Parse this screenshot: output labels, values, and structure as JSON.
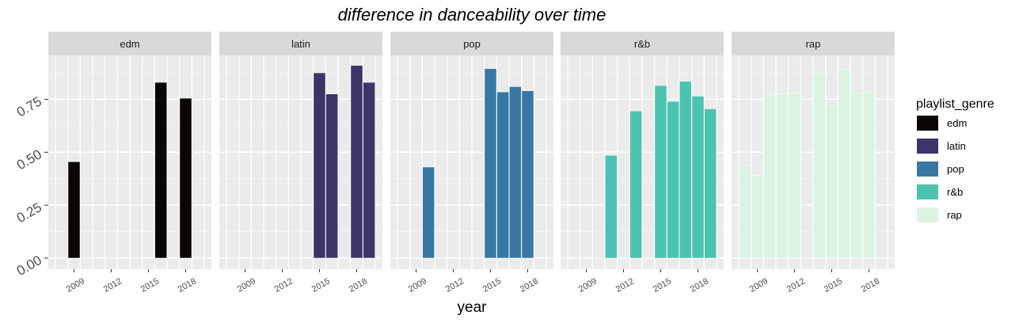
{
  "chart_data": {
    "type": "bar",
    "title": "difference in danceability over time",
    "xlabel": "year",
    "ylabel": "",
    "ylim": [
      0,
      0.92
    ],
    "y_ticks": [
      0,
      0.25,
      0.5,
      0.75
    ],
    "y_tick_labels": [
      "0.00",
      "0.25",
      "0.50",
      "0.75"
    ],
    "x_range": [
      2008,
      2019
    ],
    "x_ticks": [
      2009,
      2012,
      2015,
      2018
    ],
    "x_tick_labels": [
      "2009",
      "2012",
      "2015",
      "2018"
    ],
    "grid": true,
    "legend_position": "right",
    "legend_title": "playlist_genre",
    "facets": [
      {
        "label": "edm",
        "color": "#0a0604",
        "bars": [
          {
            "x": 2009,
            "y": 0.455
          },
          {
            "x": 2016,
            "y": 0.83
          },
          {
            "x": 2018,
            "y": 0.755
          }
        ]
      },
      {
        "label": "latin",
        "color": "#3d3568",
        "bars": [
          {
            "x": 2015,
            "y": 0.875
          },
          {
            "x": 2016,
            "y": 0.775
          },
          {
            "x": 2018,
            "y": 0.91
          },
          {
            "x": 2019,
            "y": 0.83
          }
        ]
      },
      {
        "label": "pop",
        "color": "#3778a3",
        "bars": [
          {
            "x": 2010,
            "y": 0.43
          },
          {
            "x": 2015,
            "y": 0.895
          },
          {
            "x": 2016,
            "y": 0.785
          },
          {
            "x": 2017,
            "y": 0.81
          },
          {
            "x": 2018,
            "y": 0.79
          }
        ]
      },
      {
        "label": "r&b",
        "color": "#4cc3af",
        "bars": [
          {
            "x": 2011,
            "y": 0.485
          },
          {
            "x": 2013,
            "y": 0.695
          },
          {
            "x": 2015,
            "y": 0.815
          },
          {
            "x": 2016,
            "y": 0.74
          },
          {
            "x": 2017,
            "y": 0.835
          },
          {
            "x": 2018,
            "y": 0.765
          },
          {
            "x": 2019,
            "y": 0.705
          }
        ]
      },
      {
        "label": "rap",
        "color": "#dcf3e4",
        "bars": [
          {
            "x": 2008,
            "y": 0.435
          },
          {
            "x": 2009,
            "y": 0.39
          },
          {
            "x": 2010,
            "y": 0.77
          },
          {
            "x": 2011,
            "y": 0.775
          },
          {
            "x": 2012,
            "y": 0.78
          },
          {
            "x": 2014,
            "y": 0.875
          },
          {
            "x": 2015,
            "y": 0.725
          },
          {
            "x": 2016,
            "y": 0.89
          },
          {
            "x": 2017,
            "y": 0.78
          },
          {
            "x": 2018,
            "y": 0.785
          }
        ]
      }
    ],
    "legend": [
      {
        "label": "edm",
        "color": "#0a0604"
      },
      {
        "label": "latin",
        "color": "#3d3568"
      },
      {
        "label": "pop",
        "color": "#3778a3"
      },
      {
        "label": "r&b",
        "color": "#4cc3af"
      },
      {
        "label": "rap",
        "color": "#dcf3e4"
      }
    ]
  }
}
